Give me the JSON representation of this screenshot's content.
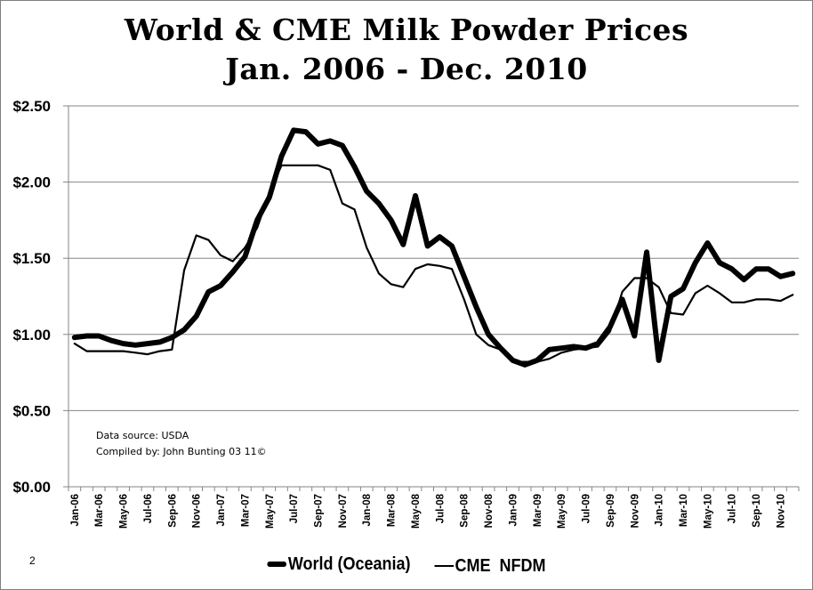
{
  "chart_data": {
    "type": "line",
    "title": "World & CME Milk Powder Prices",
    "subtitle": "Jan. 2006 - Dec. 2010",
    "xlabel": "",
    "ylabel": "",
    "ylim": [
      0,
      2.5
    ],
    "y_ticks": [
      "$0.00",
      "$0.50",
      "$1.00",
      "$1.50",
      "$2.00",
      "$2.50"
    ],
    "y_tick_values": [
      0,
      0.5,
      1.0,
      1.5,
      2.0,
      2.5
    ],
    "grid": true,
    "legend_position": "bottom",
    "x_tick_labels": [
      "Jan-06",
      "Mar-06",
      "May-06",
      "Jul-06",
      "Sep-06",
      "Nov-06",
      "Jan-07",
      "Mar-07",
      "May-07",
      "Jul-07",
      "Sep-07",
      "Nov-07",
      "Jan-08",
      "Mar-08",
      "May-08",
      "Jul-08",
      "Sep-08",
      "Nov-08",
      "Jan-09",
      "Mar-09",
      "May-09",
      "Jul-09",
      "Sep-09",
      "Nov-09",
      "Jan-10",
      "Mar-10",
      "May-10",
      "Jul-10",
      "Sep-10",
      "Nov-10"
    ],
    "months": 60,
    "series": [
      {
        "name": "World (Oceania)",
        "style": "thick",
        "values": [
          0.98,
          0.99,
          0.99,
          0.96,
          0.94,
          0.93,
          0.94,
          0.95,
          0.98,
          1.03,
          1.12,
          1.28,
          1.32,
          1.41,
          1.51,
          1.75,
          1.9,
          2.17,
          2.34,
          2.33,
          2.25,
          2.27,
          2.24,
          2.1,
          1.94,
          1.86,
          1.75,
          1.59,
          1.91,
          1.58,
          1.64,
          1.58,
          1.38,
          1.18,
          1.0,
          0.91,
          0.83,
          0.8,
          0.83,
          0.9,
          0.91,
          0.92,
          0.91,
          0.94,
          1.05,
          1.23,
          0.99,
          1.54,
          0.83,
          1.25,
          1.3,
          1.47,
          1.6,
          1.47,
          1.43,
          1.36,
          1.43,
          1.43,
          1.38,
          1.4
        ]
      },
      {
        "name": "CME  NFDM",
        "style": "thin",
        "values": [
          0.94,
          0.89,
          0.89,
          0.89,
          0.89,
          0.88,
          0.87,
          0.89,
          0.9,
          1.42,
          1.65,
          1.62,
          1.52,
          1.48,
          1.57,
          1.7,
          1.93,
          2.11,
          2.11,
          2.11,
          2.11,
          2.08,
          1.86,
          1.82,
          1.57,
          1.4,
          1.33,
          1.31,
          1.43,
          1.46,
          1.45,
          1.43,
          1.23,
          1.0,
          0.93,
          0.9,
          0.82,
          0.82,
          0.82,
          0.84,
          0.88,
          0.9,
          0.91,
          0.92,
          1.02,
          1.28,
          1.37,
          1.37,
          1.31,
          1.14,
          1.13,
          1.27,
          1.32,
          1.27,
          1.21,
          1.21,
          1.23,
          1.23,
          1.22,
          1.26
        ]
      }
    ],
    "annotations": [
      "Data source: USDA",
      "Compiled by: John Bunting 03  11©"
    ]
  },
  "page_number": "2"
}
